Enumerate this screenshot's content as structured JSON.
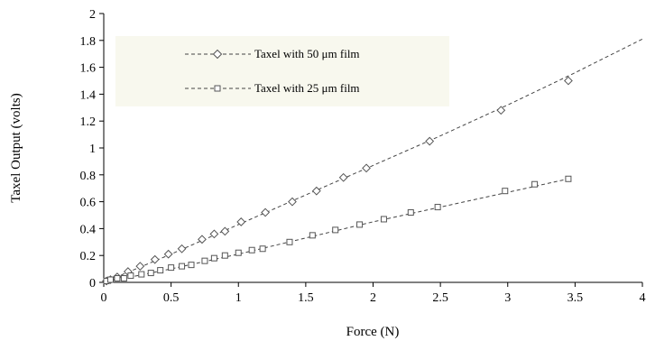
{
  "chart_data": {
    "type": "scatter",
    "title": "",
    "xlabel": "Force (N)",
    "ylabel": "Taxel Output (volts)",
    "xlim": [
      0,
      4
    ],
    "ylim": [
      0,
      2
    ],
    "x_ticks": [
      "0",
      "0.5",
      "1",
      "1.5",
      "2",
      "2.5",
      "3",
      "3.5",
      "4"
    ],
    "y_ticks": [
      "0",
      "0.2",
      "0.4",
      "0.6",
      "0.8",
      "1",
      "1.2",
      "1.4",
      "1.6",
      "1.8",
      "2"
    ],
    "grid": false,
    "legend_position": "top-left",
    "series": [
      {
        "name": "Taxel with 50 μm film",
        "marker": "diamond",
        "color": "#555555",
        "x": [
          0.02,
          0.05,
          0.1,
          0.18,
          0.27,
          0.38,
          0.48,
          0.58,
          0.73,
          0.82,
          0.9,
          1.02,
          1.2,
          1.4,
          1.58,
          1.78,
          1.95,
          2.42,
          2.95,
          3.45
        ],
        "y": [
          0.01,
          0.02,
          0.04,
          0.08,
          0.12,
          0.17,
          0.21,
          0.25,
          0.32,
          0.36,
          0.38,
          0.45,
          0.52,
          0.6,
          0.68,
          0.78,
          0.85,
          1.05,
          1.28,
          1.5
        ],
        "trend_x": [
          0,
          0.5,
          1,
          1.5,
          2,
          2.5,
          3,
          3.5,
          4
        ],
        "trend_y": [
          0,
          0.21,
          0.43,
          0.65,
          0.87,
          1.09,
          1.32,
          1.56,
          1.81
        ]
      },
      {
        "name": "Taxel with 25 μm film",
        "marker": "square",
        "color": "#555555",
        "x": [
          0.02,
          0.05,
          0.1,
          0.15,
          0.2,
          0.28,
          0.35,
          0.42,
          0.5,
          0.58,
          0.65,
          0.75,
          0.82,
          0.9,
          1.0,
          1.1,
          1.18,
          1.38,
          1.55,
          1.72,
          1.9,
          2.08,
          2.28,
          2.48,
          2.98,
          3.2,
          3.45
        ],
        "y": [
          0.01,
          0.02,
          0.03,
          0.03,
          0.05,
          0.06,
          0.07,
          0.09,
          0.11,
          0.12,
          0.13,
          0.16,
          0.18,
          0.2,
          0.22,
          0.24,
          0.25,
          0.3,
          0.35,
          0.39,
          0.43,
          0.47,
          0.52,
          0.56,
          0.68,
          0.73,
          0.77
        ],
        "trend_x": [
          0,
          0.5,
          1,
          1.5,
          2,
          2.5,
          3,
          3.45
        ],
        "trend_y": [
          0,
          0.1,
          0.21,
          0.33,
          0.45,
          0.56,
          0.67,
          0.77
        ]
      }
    ]
  }
}
